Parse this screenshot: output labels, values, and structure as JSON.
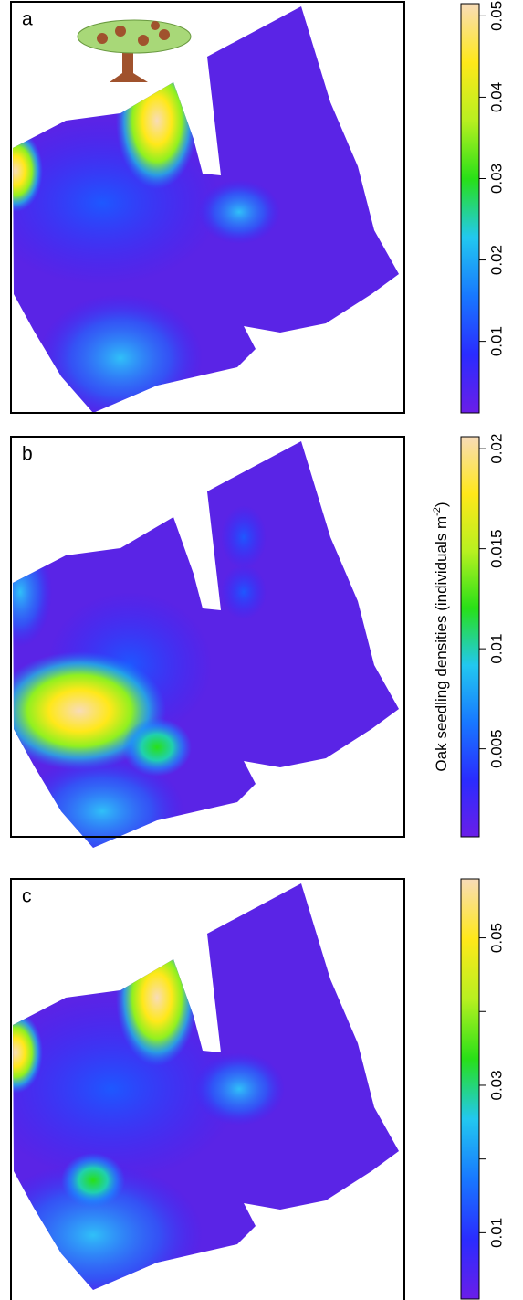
{
  "chart_data": [
    {
      "type": "heatmap",
      "title": "a",
      "colormap": [
        "#6a1ee8",
        "#2a2cff",
        "#1878ff",
        "#22c8f0",
        "#28e018",
        "#b8f020",
        "#ffe81a",
        "#f8dcb8"
      ],
      "ylim": [
        0.0012,
        0.0515
      ],
      "yticks": [
        0.01,
        0.02,
        0.03,
        0.04,
        0.05
      ]
    },
    {
      "type": "heatmap",
      "title": "b",
      "colormap": [
        "#6a1ee8",
        "#2a2cff",
        "#1878ff",
        "#22c8f0",
        "#28e018",
        "#b8f020",
        "#ffe81a",
        "#f8dcb8"
      ],
      "ylim": [
        0.0006,
        0.0206
      ],
      "yticks": [
        0.005,
        0.01,
        0.015,
        0.02
      ],
      "colorbar_label": "Oak seedling densities (individuals m",
      "colorbar_label_sup": "-2",
      "colorbar_label_end": ")"
    },
    {
      "type": "heatmap",
      "title": "c",
      "colormap": [
        "#6a1ee8",
        "#2a2cff",
        "#1878ff",
        "#22c8f0",
        "#28e018",
        "#b8f020",
        "#ffe81a",
        "#f8dcb8"
      ],
      "ylim": [
        0.001,
        0.058
      ],
      "yticks": [
        0.01,
        0.03,
        0.05
      ],
      "minor_ticks": [
        0.02,
        0.04
      ]
    }
  ]
}
